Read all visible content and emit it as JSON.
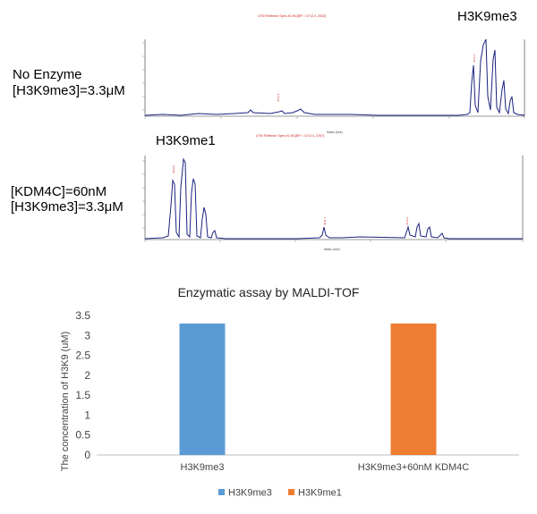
{
  "labels": {
    "spectrum1_peak": "H3K9me3",
    "spectrum1_condition_line1": "No Enzyme",
    "spectrum1_condition_line2": "[H3K9me3]=3.3μM",
    "spectrum2_peak": "H3K9me1",
    "spectrum2_condition_line1": "[KDM4C]=60nM",
    "spectrum2_condition_line2": "[H3K9me3]=3.3μM",
    "spectrum1_header": "4700 Reflector Spec #1 MC[BP = 4713.4, 2002]",
    "spectrum2_header": "4700 Reflector Spec #1 MC[BP = 4713.4, 2257]",
    "spectrum1_xlabel": "Mass (m/z)",
    "spectrum2_xlabel": "Mass (m/z)"
  },
  "chart_data": {
    "type": "bar",
    "title": "Enzymatic assay by MALDI-TOF",
    "categories": [
      "H3K9me3",
      "H3K9me3+60nM KDM4C"
    ],
    "series": [
      {
        "name": "H3K9me3",
        "color": "#5b9bd5",
        "values": [
          3.3,
          0
        ]
      },
      {
        "name": "H3K9me1",
        "color": "#ed7d31",
        "values": [
          0,
          3.3
        ]
      }
    ],
    "xlabel": "",
    "ylabel": "The concentration of H3K9 (uM)",
    "ylim": [
      0,
      3.5
    ],
    "yticks": [
      "0",
      "0.5",
      "1",
      "1.5",
      "2",
      "2.5",
      "3",
      "3.5"
    ],
    "legend_position": "bottom",
    "grid": false
  }
}
